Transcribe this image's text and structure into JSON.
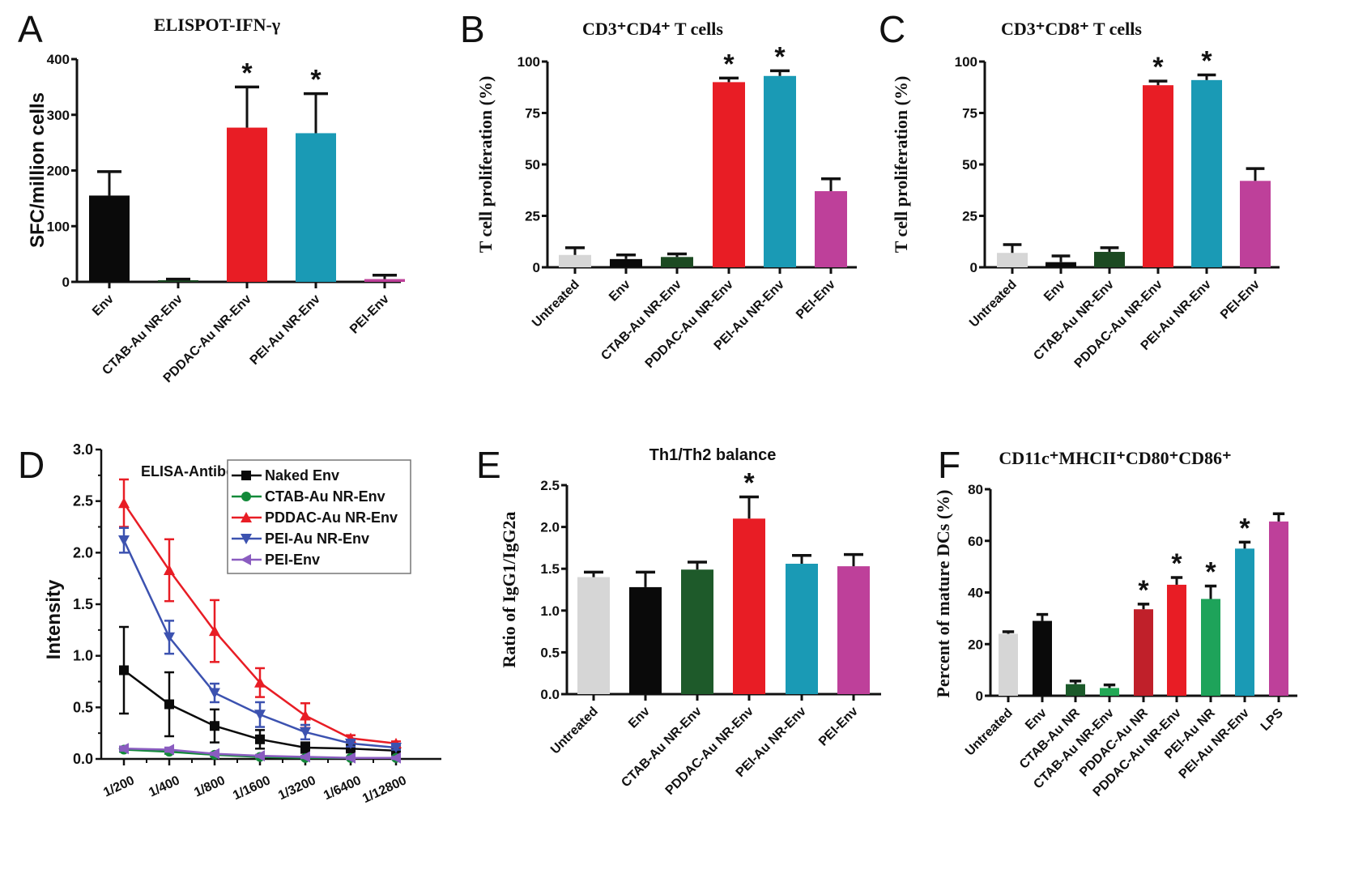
{
  "figure": {
    "panels": [
      "A",
      "B",
      "C",
      "D",
      "E",
      "F"
    ]
  },
  "chart_data": [
    {
      "id": "A",
      "type": "bar",
      "panel_letter": "A",
      "title": "ELISPOT-IFN-γ",
      "xlabel": "",
      "ylabel": "SFC/million cells",
      "ylim": [
        0,
        400
      ],
      "yticks": [
        "0",
        "100",
        "200",
        "300",
        "400"
      ],
      "categories": [
        "Env",
        "CTAB-Au NR-Env",
        "PDDAC-Au NR-Env",
        "PEI-Au NR-Env",
        "PEI-Env"
      ],
      "values": [
        155,
        3,
        277,
        267,
        5
      ],
      "errors": [
        43,
        2,
        73,
        71,
        7
      ],
      "colors": [
        "#0a0a0a",
        "#1b4a22",
        "#e81d25",
        "#1a9ab5",
        "#be409a"
      ],
      "significant": [
        false,
        false,
        true,
        true,
        false
      ],
      "annotation_symbol": "*"
    },
    {
      "id": "B",
      "type": "bar",
      "panel_letter": "B",
      "title": "CD3⁺CD4⁺ T cells",
      "xlabel": "",
      "ylabel": "T cell proliferation (%)",
      "ylim": [
        0,
        100
      ],
      "yticks": [
        "0",
        "25",
        "50",
        "75",
        "100"
      ],
      "categories": [
        "Untreated",
        "Env",
        "CTAB-Au NR-Env",
        "PDDAC-Au NR-Env",
        "PEI-Au NR-Env",
        "PEI-Env"
      ],
      "values": [
        6,
        4,
        5,
        90,
        93,
        37
      ],
      "errors": [
        3.5,
        2,
        1.5,
        2,
        2.5,
        6
      ],
      "colors": [
        "#d6d6d6",
        "#0a0a0a",
        "#1c4a22",
        "#e81d25",
        "#1a9ab5",
        "#be409a"
      ],
      "significant": [
        false,
        false,
        false,
        true,
        true,
        false
      ],
      "annotation_symbol": "*"
    },
    {
      "id": "C",
      "type": "bar",
      "panel_letter": "C",
      "title": "CD3⁺CD8⁺ T cells",
      "xlabel": "",
      "ylabel": "T cell proliferation (%)",
      "ylim": [
        0,
        100
      ],
      "yticks": [
        "0",
        "25",
        "50",
        "75",
        "100"
      ],
      "categories": [
        "Untreated",
        "Env",
        "CTAB-Au NR-Env",
        "PDDAC-Au NR-Env",
        "PEI-Au NR-Env",
        "PEI-Env"
      ],
      "values": [
        7,
        2.5,
        7.5,
        88.5,
        91,
        42
      ],
      "errors": [
        4,
        3,
        2,
        2,
        2.5,
        6
      ],
      "colors": [
        "#d6d6d6",
        "#0a0a0a",
        "#1c4a22",
        "#e81d25",
        "#1a9ab5",
        "#be409a"
      ],
      "significant": [
        false,
        false,
        false,
        true,
        true,
        false
      ],
      "annotation_symbol": "*"
    },
    {
      "id": "D",
      "type": "line",
      "panel_letter": "D",
      "title": "ELISA-Antibody titer",
      "xlabel": "",
      "ylabel": "Intensity",
      "ylim": [
        0,
        3.0
      ],
      "yticks": [
        "0.0",
        "0.5",
        "1.0",
        "1.5",
        "2.0",
        "2.5",
        "3.0"
      ],
      "x": [
        "1/200",
        "1/400",
        "1/800",
        "1/1600",
        "1/3200",
        "1/6400",
        "1/12800"
      ],
      "legend_position": "top-right",
      "series": [
        {
          "name": "Naked Env",
          "color": "#0a0a0a",
          "marker": "square",
          "values": [
            0.86,
            0.53,
            0.32,
            0.19,
            0.11,
            0.1,
            0.08
          ],
          "errors": [
            0.42,
            0.31,
            0.16,
            0.09,
            0.05,
            0.03,
            0.02
          ]
        },
        {
          "name": "CTAB-Au NR-Env",
          "color": "#138a3a",
          "marker": "circle",
          "values": [
            0.09,
            0.07,
            0.04,
            0.02,
            0.01,
            0.01,
            0.01
          ],
          "errors": [
            0.02,
            0.02,
            0.01,
            0.01,
            0.01,
            0.01,
            0.01
          ]
        },
        {
          "name": "PDDAC-Au NR-Env",
          "color": "#e81d25",
          "marker": "triangle-up",
          "values": [
            2.48,
            1.83,
            1.24,
            0.74,
            0.42,
            0.2,
            0.15
          ],
          "errors": [
            0.23,
            0.3,
            0.3,
            0.14,
            0.12,
            0.03,
            0.02
          ]
        },
        {
          "name": "PEI-Au NR-Env",
          "color": "#3c52b0",
          "marker": "triangle-down",
          "values": [
            2.12,
            1.18,
            0.64,
            0.43,
            0.26,
            0.15,
            0.11
          ],
          "errors": [
            0.12,
            0.16,
            0.09,
            0.12,
            0.07,
            0.03,
            0.02
          ]
        },
        {
          "name": "PEI-Env",
          "color": "#8a5cc0",
          "marker": "triangle-left",
          "values": [
            0.1,
            0.09,
            0.05,
            0.03,
            0.02,
            0.01,
            0.01
          ],
          "errors": [
            0.02,
            0.02,
            0.01,
            0.01,
            0.01,
            0.01,
            0.01
          ]
        }
      ]
    },
    {
      "id": "E",
      "type": "bar",
      "panel_letter": "E",
      "title": "Th1/Th2 balance",
      "xlabel": "",
      "ylabel": "Ratio of IgG1/IgG2a",
      "ylim": [
        0,
        2.5
      ],
      "yticks": [
        "0.0",
        "0.5",
        "1.0",
        "1.5",
        "2.0",
        "2.5"
      ],
      "categories": [
        "Untreated",
        "Env",
        "CTAB-Au NR-Env",
        "PDDAC-Au NR-Env",
        "PEI-Au NR-Env",
        "PEI-Env"
      ],
      "values": [
        1.4,
        1.28,
        1.49,
        2.1,
        1.56,
        1.53
      ],
      "errors": [
        0.06,
        0.18,
        0.09,
        0.26,
        0.1,
        0.14
      ],
      "colors": [
        "#d6d6d6",
        "#0a0a0a",
        "#1e5a2a",
        "#e81d25",
        "#1a9ab5",
        "#be409a"
      ],
      "significant": [
        false,
        false,
        false,
        true,
        false,
        false
      ],
      "annotation_symbol": "*"
    },
    {
      "id": "F",
      "type": "bar",
      "panel_letter": "F",
      "title": "CD11c⁺MHCII⁺CD80⁺CD86⁺",
      "xlabel": "",
      "ylabel": "Percent of mature DCs (%)",
      "ylim": [
        0,
        80
      ],
      "yticks": [
        "0",
        "20",
        "40",
        "60",
        "80"
      ],
      "categories": [
        "Untreated",
        "Env",
        "CTAB-Au NR",
        "CTAB-Au NR-Env",
        "PDDAC-Au NR",
        "PDDAC-Au NR-Env",
        "PEI-Au NR",
        "PEI-Au NR-Env",
        "LPS"
      ],
      "values": [
        24,
        29,
        4.5,
        3,
        33.5,
        43,
        37.5,
        57,
        67.5
      ],
      "errors": [
        0.8,
        2.5,
        1.2,
        1.2,
        2,
        2.8,
        5,
        2.5,
        3
      ],
      "colors": [
        "#d6d6d6",
        "#0a0a0a",
        "#1c5a2a",
        "#22a855",
        "#c0202a",
        "#e81d25",
        "#1ea35a",
        "#1a9ab5",
        "#be409a"
      ],
      "significant": [
        false,
        false,
        false,
        false,
        true,
        true,
        true,
        true,
        false
      ],
      "annotation_symbol": "*"
    }
  ]
}
